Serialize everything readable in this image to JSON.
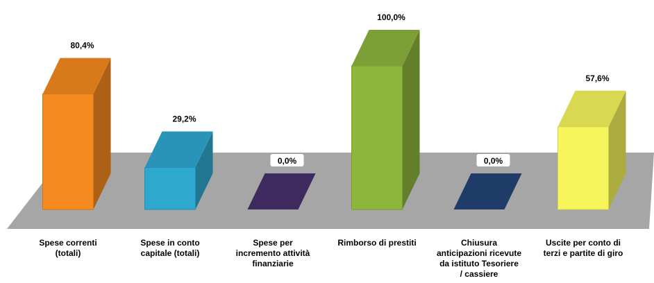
{
  "chart_data": {
    "type": "bar3d",
    "categories": [
      "Spese  correnti\n(totali)",
      "Spese in conto\ncapitale (totali)",
      "Spese per\nincremento attività\nfinanziarie",
      "Rimborso di prestiti",
      "Chiusura\nanticipazioni ricevute\nda istituto Tesoriere\n/ cassiere",
      "Uscite per conto di\nterzi e partite di giro"
    ],
    "values": [
      80.4,
      29.2,
      0.0,
      100.0,
      0.0,
      57.6
    ],
    "value_labels": [
      "80,4%",
      "29,2%",
      "0,0%",
      "100,0%",
      "0,0%",
      "57,6%"
    ],
    "colors": [
      "#f58a1f",
      "#2fa8d0",
      "#3e2a5e",
      "#8db63c",
      "#1f3b68",
      "#f7f55c"
    ]
  }
}
